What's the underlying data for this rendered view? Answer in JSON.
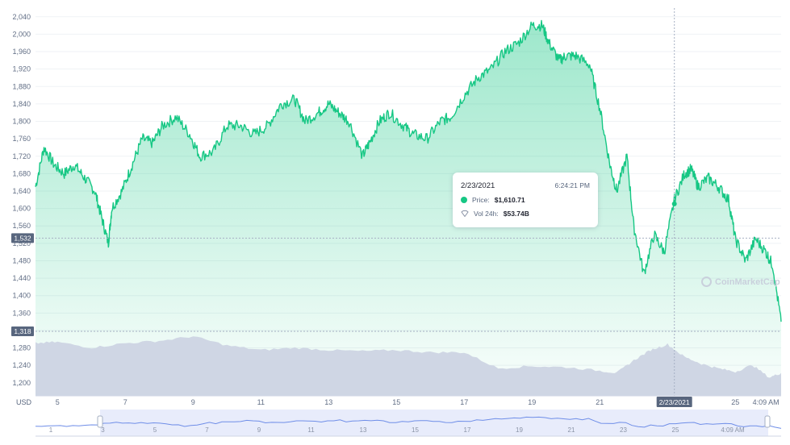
{
  "currency_label": "USD",
  "watermark": "CoinMarketCap",
  "tooltip": {
    "date": "2/23/2021",
    "time": "6:24:21 PM",
    "price_label": "Price:",
    "price_value": "$1,610.71",
    "volume_label": "Vol 24h:",
    "volume_value": "$53.74B"
  },
  "crosshair_x_label": "2/23/2021",
  "y_markers": [
    "1,532",
    "1,318"
  ],
  "chart_data": {
    "type": "area",
    "title": "",
    "y_ticks": [
      "2,040",
      "2,000",
      "1,960",
      "1,920",
      "1,880",
      "1,840",
      "1,800",
      "1,760",
      "1,720",
      "1,680",
      "1,640",
      "1,600",
      "1,560",
      "1,520",
      "1,480",
      "1,440",
      "1,400",
      "1,360",
      "1,320",
      "1,280",
      "1,240",
      "1,200"
    ],
    "x_ticks": [
      "5",
      "7",
      "9",
      "11",
      "13",
      "15",
      "17",
      "19",
      "21",
      "2/23/2021",
      "25",
      "4:09 AM"
    ],
    "nav_ticks": [
      "1",
      "3",
      "5",
      "7",
      "9",
      "11",
      "13",
      "15",
      "17",
      "19",
      "21",
      "23",
      "25",
      "4:09 AM"
    ],
    "ylim": [
      1170,
      2060
    ],
    "xlim": [
      4.35,
      26.35
    ],
    "price_series": {
      "name": "Price",
      "x": [
        4.35,
        4.6,
        4.9,
        5.2,
        5.5,
        5.8,
        6.1,
        6.3,
        6.5,
        6.6,
        6.9,
        7.2,
        7.5,
        7.8,
        8.1,
        8.5,
        8.9,
        9.2,
        9.6,
        10.0,
        10.4,
        10.8,
        11.2,
        11.6,
        12.0,
        12.3,
        12.7,
        13.0,
        13.3,
        13.6,
        14.0,
        14.2,
        14.5,
        14.8,
        15.2,
        15.5,
        15.9,
        16.3,
        16.6,
        17.0,
        17.4,
        17.8,
        18.2,
        18.6,
        19.0,
        19.3,
        19.5,
        19.8,
        20.0,
        20.3,
        20.7,
        21.0,
        21.3,
        21.5,
        21.8,
        22.0,
        22.3,
        22.6,
        22.9,
        23.2,
        23.5,
        23.7,
        23.9,
        24.2,
        24.5,
        24.8,
        25.0,
        25.3,
        25.6,
        25.9,
        26.1,
        26.35
      ],
      "values": [
        1650,
        1740,
        1700,
        1680,
        1700,
        1670,
        1640,
        1580,
        1520,
        1600,
        1640,
        1700,
        1760,
        1750,
        1790,
        1810,
        1770,
        1720,
        1730,
        1790,
        1790,
        1770,
        1790,
        1840,
        1850,
        1800,
        1820,
        1840,
        1820,
        1800,
        1720,
        1750,
        1800,
        1820,
        1790,
        1770,
        1760,
        1800,
        1810,
        1860,
        1900,
        1920,
        1960,
        1980,
        2020,
        2020,
        1980,
        1940,
        1950,
        1950,
        1930,
        1830,
        1700,
        1640,
        1720,
        1560,
        1450,
        1540,
        1500,
        1620,
        1680,
        1690,
        1650,
        1670,
        1650,
        1620,
        1530,
        1480,
        1530,
        1500,
        1470,
        1340
      ]
    },
    "volume_series": {
      "name": "Vol 24h",
      "x": [
        4.35,
        5.0,
        6.0,
        7.0,
        8.0,
        9.0,
        10.0,
        11.0,
        12.0,
        13.0,
        14.0,
        15.0,
        16.0,
        17.0,
        18.0,
        19.0,
        20.0,
        21.0,
        21.5,
        22.0,
        22.5,
        23.0,
        23.5,
        24.0,
        24.5,
        25.0,
        25.5,
        26.0,
        26.35
      ],
      "values": [
        46,
        47,
        42,
        46,
        48,
        52,
        44,
        40,
        42,
        40,
        39,
        40,
        38,
        38,
        24,
        26,
        25,
        22,
        20,
        31,
        40,
        45,
        34,
        28,
        24,
        21,
        27,
        16,
        20
      ]
    },
    "hover_point": {
      "x": 23.2,
      "value": 1610.71
    }
  }
}
